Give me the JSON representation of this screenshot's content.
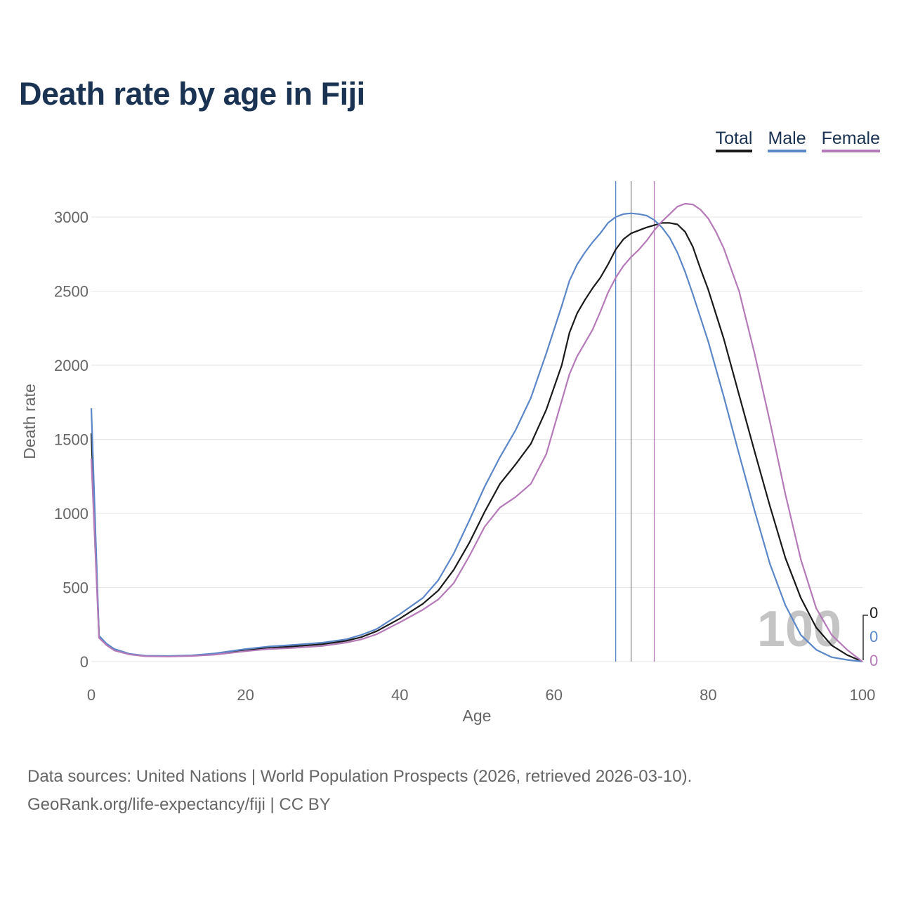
{
  "title": "Death rate by age in Fiji",
  "legend": [
    {
      "label": "Total",
      "color": "#1a1a1a"
    },
    {
      "label": "Male",
      "color": "#5b87c8"
    },
    {
      "label": "Female",
      "color": "#b57ab8"
    }
  ],
  "footer": {
    "line1": "Data sources: United Nations | World Population Prospects (2026, retrieved 2026-03-10).",
    "line2": "GeoRank.org/life-expectancy/fiji | CC BY"
  },
  "chart_data": {
    "type": "line",
    "title": "Death rate by age in Fiji",
    "xlabel": "Age",
    "ylabel": "Death rate",
    "xlim": [
      0,
      100
    ],
    "ylim": [
      0,
      3150
    ],
    "xticks": [
      0,
      20,
      40,
      60,
      80,
      100
    ],
    "yticks": [
      0,
      500,
      1000,
      1500,
      2000,
      2500,
      3000
    ],
    "grid": true,
    "legend_position": "top-right",
    "slider_label": "100",
    "end_labels": [
      "0",
      "0",
      "0"
    ],
    "reference_lines": [
      {
        "name": "Male",
        "x": 68
      },
      {
        "name": "Total",
        "x": 70
      },
      {
        "name": "Female",
        "x": 73
      }
    ],
    "series": [
      {
        "name": "Total",
        "color": "#1a1a1a",
        "points": [
          [
            0,
            1540
          ],
          [
            1,
            170
          ],
          [
            2,
            115
          ],
          [
            3,
            80
          ],
          [
            5,
            50
          ],
          [
            7,
            38
          ],
          [
            10,
            36
          ],
          [
            13,
            40
          ],
          [
            16,
            50
          ],
          [
            20,
            78
          ],
          [
            23,
            92
          ],
          [
            26,
            102
          ],
          [
            30,
            118
          ],
          [
            33,
            140
          ],
          [
            35,
            165
          ],
          [
            37,
            205
          ],
          [
            40,
            290
          ],
          [
            43,
            390
          ],
          [
            45,
            480
          ],
          [
            47,
            620
          ],
          [
            49,
            800
          ],
          [
            51,
            1010
          ],
          [
            53,
            1200
          ],
          [
            55,
            1330
          ],
          [
            57,
            1470
          ],
          [
            59,
            1700
          ],
          [
            61,
            2000
          ],
          [
            62,
            2220
          ],
          [
            63,
            2350
          ],
          [
            64,
            2440
          ],
          [
            65,
            2520
          ],
          [
            66,
            2590
          ],
          [
            67,
            2680
          ],
          [
            68,
            2780
          ],
          [
            69,
            2850
          ],
          [
            70,
            2890
          ],
          [
            72,
            2930
          ],
          [
            74,
            2960
          ],
          [
            75,
            2960
          ],
          [
            76,
            2950
          ],
          [
            77,
            2900
          ],
          [
            78,
            2800
          ],
          [
            79,
            2650
          ],
          [
            80,
            2510
          ],
          [
            82,
            2180
          ],
          [
            84,
            1800
          ],
          [
            86,
            1420
          ],
          [
            88,
            1050
          ],
          [
            90,
            700
          ],
          [
            92,
            430
          ],
          [
            94,
            230
          ],
          [
            96,
            110
          ],
          [
            98,
            45
          ],
          [
            100,
            0
          ]
        ]
      },
      {
        "name": "Male",
        "color": "#5b87c8",
        "points": [
          [
            0,
            1710
          ],
          [
            1,
            175
          ],
          [
            2,
            120
          ],
          [
            3,
            85
          ],
          [
            5,
            52
          ],
          [
            7,
            40
          ],
          [
            10,
            38
          ],
          [
            13,
            42
          ],
          [
            16,
            55
          ],
          [
            20,
            85
          ],
          [
            23,
            102
          ],
          [
            26,
            112
          ],
          [
            30,
            128
          ],
          [
            33,
            150
          ],
          [
            35,
            180
          ],
          [
            37,
            220
          ],
          [
            40,
            320
          ],
          [
            43,
            430
          ],
          [
            45,
            550
          ],
          [
            47,
            730
          ],
          [
            49,
            950
          ],
          [
            51,
            1180
          ],
          [
            53,
            1380
          ],
          [
            55,
            1560
          ],
          [
            57,
            1780
          ],
          [
            59,
            2080
          ],
          [
            61,
            2400
          ],
          [
            62,
            2570
          ],
          [
            63,
            2680
          ],
          [
            64,
            2760
          ],
          [
            65,
            2830
          ],
          [
            66,
            2890
          ],
          [
            67,
            2960
          ],
          [
            68,
            3000
          ],
          [
            69,
            3020
          ],
          [
            70,
            3025
          ],
          [
            71,
            3020
          ],
          [
            72,
            3010
          ],
          [
            73,
            2980
          ],
          [
            74,
            2930
          ],
          [
            75,
            2860
          ],
          [
            76,
            2760
          ],
          [
            77,
            2630
          ],
          [
            78,
            2480
          ],
          [
            80,
            2160
          ],
          [
            82,
            1790
          ],
          [
            84,
            1400
          ],
          [
            86,
            1020
          ],
          [
            88,
            660
          ],
          [
            90,
            380
          ],
          [
            92,
            180
          ],
          [
            94,
            80
          ],
          [
            96,
            30
          ],
          [
            98,
            12
          ],
          [
            100,
            0
          ]
        ]
      },
      {
        "name": "Female",
        "color": "#b57ab8",
        "points": [
          [
            0,
            1370
          ],
          [
            1,
            160
          ],
          [
            2,
            110
          ],
          [
            3,
            75
          ],
          [
            5,
            48
          ],
          [
            7,
            36
          ],
          [
            10,
            34
          ],
          [
            13,
            38
          ],
          [
            16,
            47
          ],
          [
            20,
            70
          ],
          [
            23,
            85
          ],
          [
            26,
            92
          ],
          [
            30,
            106
          ],
          [
            33,
            128
          ],
          [
            35,
            150
          ],
          [
            37,
            185
          ],
          [
            40,
            265
          ],
          [
            43,
            350
          ],
          [
            45,
            420
          ],
          [
            47,
            530
          ],
          [
            49,
            710
          ],
          [
            51,
            910
          ],
          [
            53,
            1040
          ],
          [
            55,
            1110
          ],
          [
            57,
            1200
          ],
          [
            59,
            1400
          ],
          [
            61,
            1760
          ],
          [
            62,
            1940
          ],
          [
            63,
            2060
          ],
          [
            64,
            2150
          ],
          [
            65,
            2240
          ],
          [
            66,
            2360
          ],
          [
            67,
            2490
          ],
          [
            68,
            2590
          ],
          [
            69,
            2670
          ],
          [
            70,
            2730
          ],
          [
            71,
            2780
          ],
          [
            72,
            2840
          ],
          [
            73,
            2910
          ],
          [
            74,
            2970
          ],
          [
            75,
            3020
          ],
          [
            76,
            3070
          ],
          [
            77,
            3090
          ],
          [
            78,
            3085
          ],
          [
            79,
            3050
          ],
          [
            80,
            2990
          ],
          [
            81,
            2900
          ],
          [
            82,
            2790
          ],
          [
            84,
            2500
          ],
          [
            86,
            2080
          ],
          [
            88,
            1620
          ],
          [
            90,
            1130
          ],
          [
            92,
            690
          ],
          [
            94,
            360
          ],
          [
            96,
            180
          ],
          [
            98,
            80
          ],
          [
            100,
            0
          ]
        ]
      }
    ]
  }
}
